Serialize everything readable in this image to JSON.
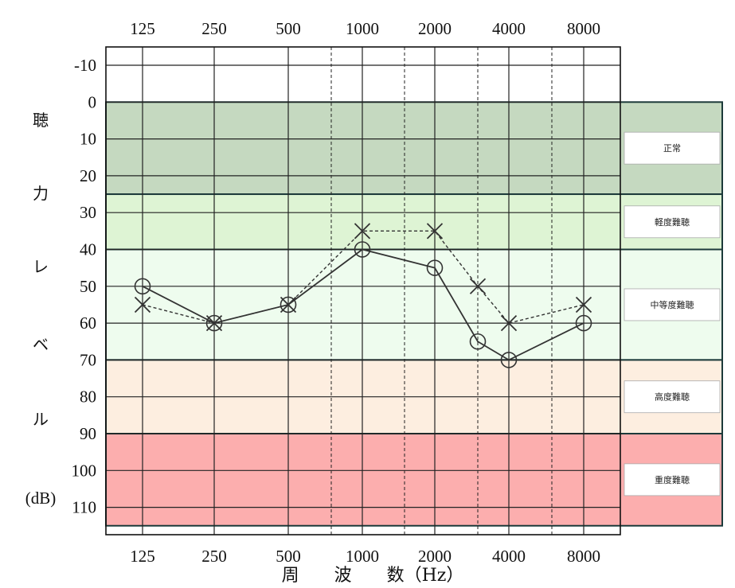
{
  "chart_data": {
    "type": "line",
    "title": "",
    "xlabel": "周　　波　　数（Hz）",
    "ylabel_chars": [
      "聴",
      "力",
      "レ",
      "ベ",
      "ル"
    ],
    "yunit": "(dB)",
    "x_tick_labels": [
      "125",
      "250",
      "500",
      "1000",
      "2000",
      "4000",
      "8000"
    ],
    "x_positions": [
      "125",
      "250",
      "500",
      "750",
      "1000",
      "1500",
      "2000",
      "3000",
      "4000",
      "6000",
      "8000"
    ],
    "y_ticks": [
      -10,
      0,
      10,
      20,
      30,
      40,
      50,
      60,
      70,
      80,
      90,
      100,
      110
    ],
    "ylim": [
      -10,
      110
    ],
    "y_inverted": true,
    "bands": [
      {
        "label": "正常",
        "from": 0,
        "to": 25,
        "color": "#c5d9c0"
      },
      {
        "label": "軽度難聴",
        "from": 25,
        "to": 40,
        "color": "#def4d4"
      },
      {
        "label": "中等度難聴",
        "from": 40,
        "to": 70,
        "color": "#eefcee"
      },
      {
        "label": "高度難聴",
        "from": 70,
        "to": 90,
        "color": "#fdeee0"
      },
      {
        "label": "重度難聴",
        "from": 90,
        "to": 115,
        "color": "#fcaeae"
      }
    ],
    "series": [
      {
        "marker": "circle",
        "line": "solid",
        "x": [
          "125",
          "250",
          "500",
          "1000",
          "2000",
          "3000",
          "4000",
          "8000"
        ],
        "values": [
          50,
          60,
          55,
          40,
          45,
          65,
          70,
          60
        ]
      },
      {
        "marker": "cross",
        "line": "dashed",
        "x": [
          "125",
          "250",
          "500",
          "1000",
          "2000",
          "3000",
          "4000",
          "8000"
        ],
        "values": [
          55,
          60,
          55,
          35,
          35,
          50,
          60,
          55
        ]
      }
    ],
    "grid": true
  }
}
